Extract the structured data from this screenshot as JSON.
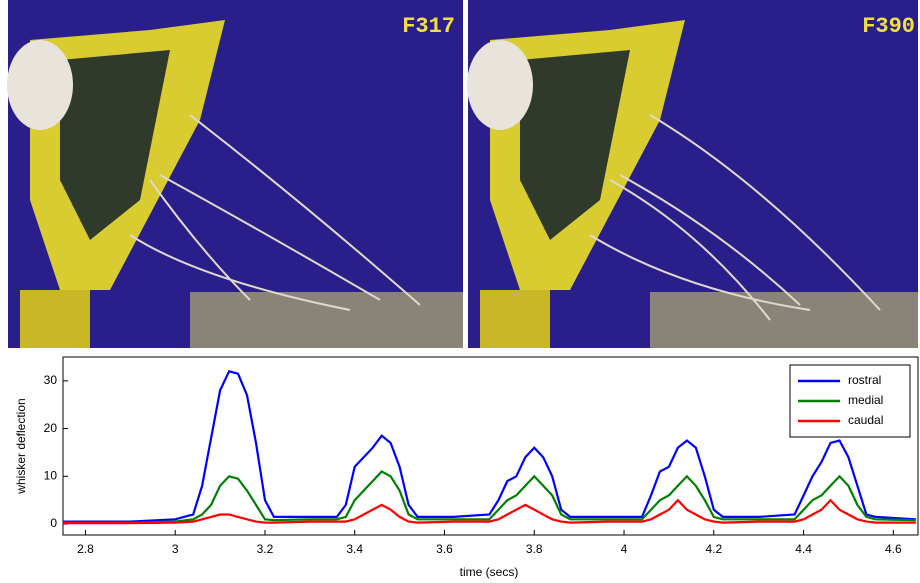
{
  "panels": [
    {
      "label": "F317"
    },
    {
      "label": "F390"
    }
  ],
  "chart_data": {
    "type": "line",
    "xlabel": "time (secs)",
    "ylabel": "whisker deflection",
    "xlim": [
      2.75,
      4.655
    ],
    "ylim": [
      -2.3,
      35
    ],
    "xticks": [
      2.8,
      3,
      3.2,
      3.4,
      3.6,
      3.8,
      4,
      4.2,
      4.4,
      4.6
    ],
    "yticks": [
      0,
      10,
      20,
      30
    ],
    "legend": "upper right",
    "x": [
      2.75,
      2.9,
      3.0,
      3.04,
      3.06,
      3.08,
      3.1,
      3.12,
      3.14,
      3.16,
      3.18,
      3.2,
      3.22,
      3.3,
      3.36,
      3.38,
      3.4,
      3.42,
      3.44,
      3.46,
      3.48,
      3.5,
      3.52,
      3.54,
      3.62,
      3.7,
      3.72,
      3.74,
      3.76,
      3.78,
      3.8,
      3.82,
      3.84,
      3.86,
      3.88,
      3.96,
      4.04,
      4.06,
      4.08,
      4.1,
      4.12,
      4.14,
      4.16,
      4.18,
      4.2,
      4.22,
      4.3,
      4.38,
      4.4,
      4.42,
      4.44,
      4.46,
      4.48,
      4.5,
      4.52,
      4.54,
      4.56,
      4.65
    ],
    "series": [
      {
        "name": "rostral",
        "color": "#0000ff",
        "values": [
          0.5,
          0.5,
          1,
          2,
          8,
          18,
          28,
          32,
          31.5,
          27,
          17,
          5,
          1.5,
          1.5,
          1.5,
          4,
          12,
          14,
          16,
          18.5,
          17,
          12,
          4,
          1.5,
          1.5,
          2,
          5,
          9,
          10,
          14,
          16,
          14,
          10,
          3,
          1.5,
          1.5,
          1.5,
          6,
          11,
          12,
          16,
          17.5,
          16,
          10,
          3,
          1.5,
          1.5,
          2,
          6,
          10,
          13,
          17,
          17.5,
          14,
          8,
          2,
          1.5,
          1
        ]
      },
      {
        "name": "medial",
        "color": "#008000",
        "values": [
          0.3,
          0.3,
          0.5,
          1,
          2,
          4,
          8,
          10,
          9.5,
          7,
          4,
          1,
          0.8,
          1,
          1,
          1.5,
          5,
          7,
          9,
          11,
          10,
          7,
          2,
          1,
          1,
          1,
          3,
          5,
          6,
          8,
          10,
          8,
          6,
          2,
          1,
          1,
          1,
          3,
          5,
          6,
          8,
          10,
          8,
          5,
          1.5,
          1,
          1,
          1,
          3,
          5,
          6,
          8,
          10,
          8,
          4,
          1.5,
          1,
          0.8
        ]
      },
      {
        "name": "caudal",
        "color": "#ff0000",
        "values": [
          0.2,
          0.2,
          0.3,
          0.5,
          1,
          1.5,
          2,
          2,
          1.5,
          1,
          0.5,
          0.3,
          0.3,
          0.5,
          0.5,
          0.5,
          1,
          2,
          3,
          4,
          3,
          1.5,
          0.5,
          0.3,
          0.5,
          0.5,
          1,
          2,
          3,
          4,
          3,
          2,
          1,
          0.5,
          0.3,
          0.5,
          0.5,
          1,
          2,
          3,
          5,
          3,
          2,
          1,
          0.5,
          0.3,
          0.5,
          0.5,
          1,
          2,
          3,
          5,
          3,
          2,
          1,
          0.5,
          0.3,
          0.3
        ]
      }
    ]
  }
}
